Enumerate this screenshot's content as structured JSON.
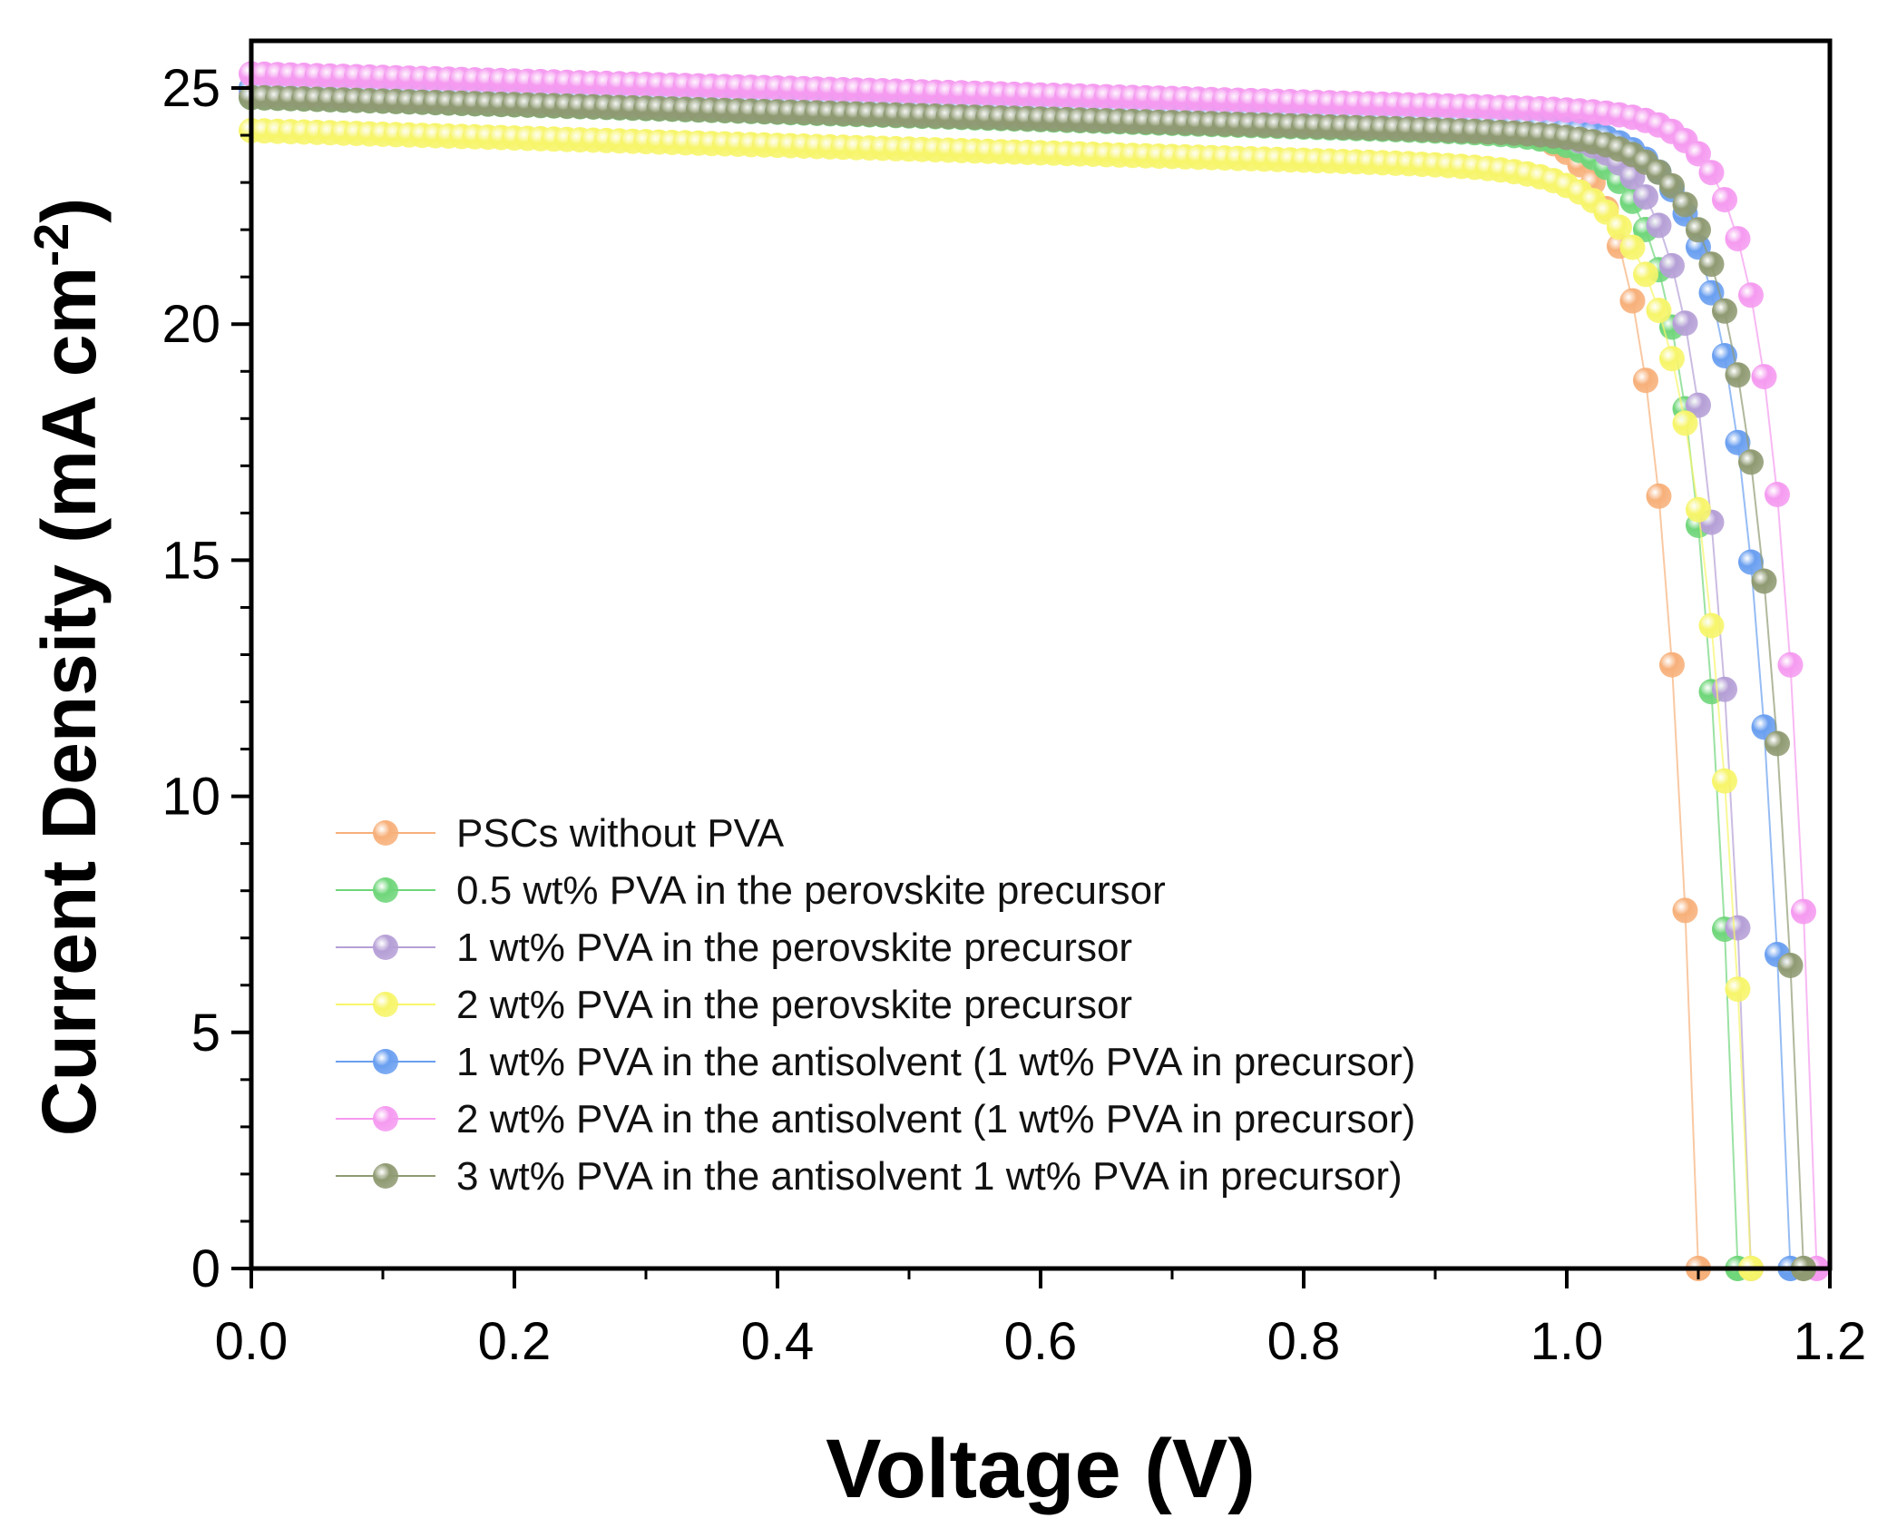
{
  "chart_data": {
    "type": "scatter",
    "title": "",
    "xlabel": "Voltage (V)",
    "ylabel": "Current Density (mA cm",
    "ylabel_sup": "-2",
    "ylabel_close": ")",
    "xlim": [
      0.0,
      1.2
    ],
    "ylim": [
      0,
      26
    ],
    "x_ticks": [
      0.0,
      0.2,
      0.4,
      0.6,
      0.8,
      1.0,
      1.2
    ],
    "x_tick_labels": [
      "0.0",
      "0.2",
      "0.4",
      "0.6",
      "0.8",
      "1.0",
      "1.2"
    ],
    "y_ticks": [
      0,
      5,
      10,
      15,
      20,
      25
    ],
    "y_tick_labels": [
      "0",
      "5",
      "10",
      "15",
      "20",
      "25"
    ],
    "grid": false,
    "legend_position": "bottom-left",
    "series": [
      {
        "name": "PSCs without PVA",
        "color": "#f7b07a",
        "jsc": 25.0,
        "voc": 1.1,
        "knee": 0.93,
        "width": 0.0265
      },
      {
        "name": "0.5 wt% PVA in the perovskite precursor",
        "color": "#6fd67a",
        "jsc": 24.8,
        "voc": 1.13,
        "knee": 0.95,
        "width": 0.028
      },
      {
        "name": "1 wt% PVA in the perovskite precursor",
        "color": "#b59fd6",
        "jsc": 24.9,
        "voc": 1.14,
        "knee": 0.96,
        "width": 0.028
      },
      {
        "name": "2 wt% PVA in the perovskite precursor",
        "color": "#f7f56a",
        "jsc": 24.1,
        "voc": 1.14,
        "knee": 0.92,
        "width": 0.034
      },
      {
        "name": "1 wt% PVA  in the antisolvent (1 wt% PVA in precursor)",
        "color": "#6a9ff0",
        "jsc": 25.0,
        "voc": 1.17,
        "knee": 0.98,
        "width": 0.031
      },
      {
        "name": "2 wt% PVA in the antisolvent (1 wt% PVA in precursor)",
        "color": "#f59af0",
        "jsc": 25.3,
        "voc": 1.19,
        "knee": 1.02,
        "width": 0.027
      },
      {
        "name": "3 wt% PVA in the antisolvent 1 wt% PVA in precursor)",
        "color": "#8f9a72",
        "jsc": 24.8,
        "voc": 1.18,
        "knee": 0.98,
        "width": 0.032
      }
    ]
  }
}
